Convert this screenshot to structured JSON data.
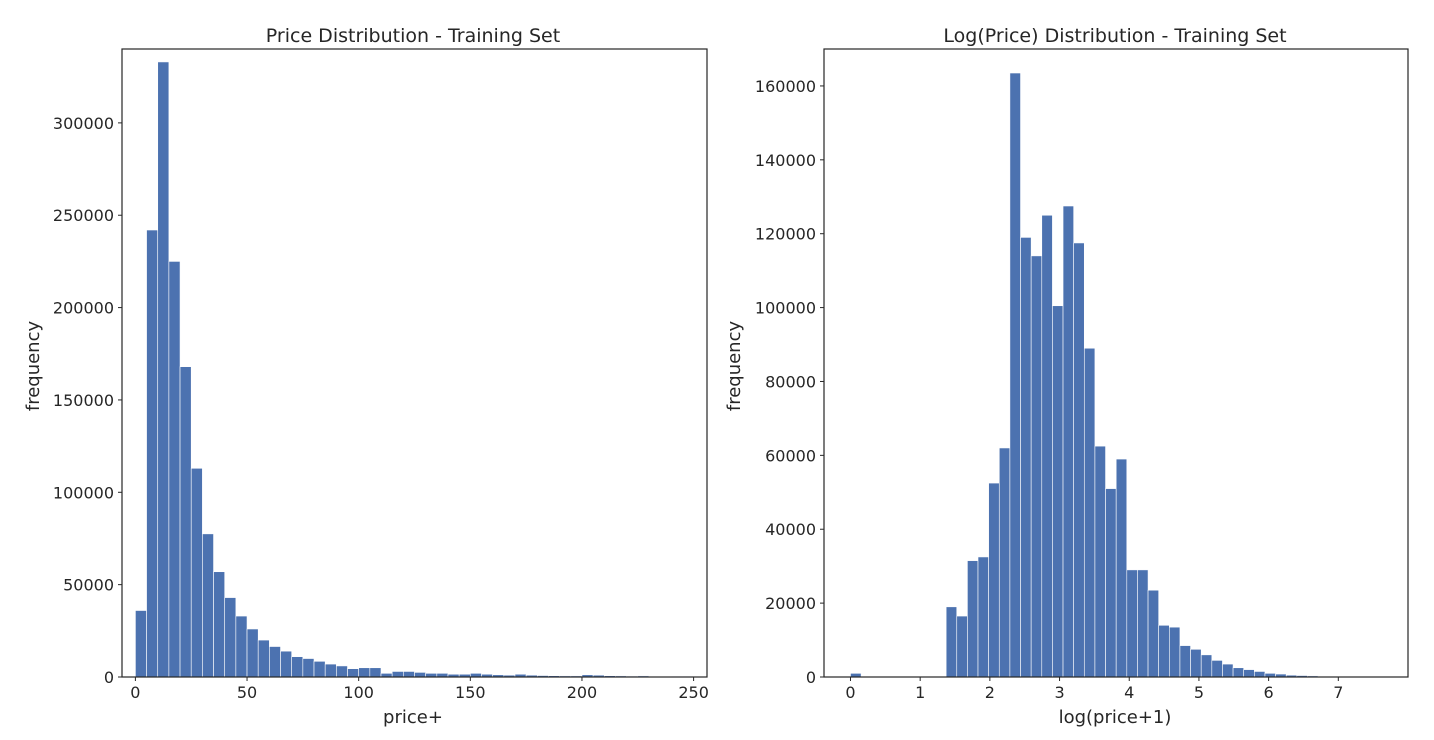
{
  "bar_color": "#4c72b0",
  "chart_data": [
    {
      "type": "bar",
      "title": "Price Distribution - Training Set",
      "xlabel": "price+",
      "ylabel": "frequency",
      "grid": false,
      "xlim": [
        -6,
        256
      ],
      "ylim": [
        0,
        340000
      ],
      "x_ticks": [
        0,
        50,
        100,
        150,
        200,
        250
      ],
      "y_ticks": [
        0,
        50000,
        100000,
        150000,
        200000,
        250000,
        300000
      ],
      "bin_start": 0,
      "bin_width": 5,
      "values": [
        36000,
        242000,
        333000,
        225000,
        168000,
        113000,
        77500,
        57000,
        43000,
        33000,
        26000,
        20000,
        16500,
        14000,
        11000,
        10000,
        8500,
        7000,
        6000,
        4500,
        5000,
        5000,
        2000,
        3000,
        3000,
        2500,
        2000,
        2000,
        1500,
        1500,
        2000,
        1500,
        1200,
        1000,
        1500,
        1000,
        800,
        700,
        600,
        600,
        1200,
        1000,
        700,
        600,
        500,
        600,
        400,
        400,
        300,
        300
      ]
    },
    {
      "type": "bar",
      "title": "Log(Price) Distribution - Training Set",
      "xlabel": "log(price+1)",
      "ylabel": "frequency",
      "grid": false,
      "xlim": [
        -0.38,
        8.0
      ],
      "ylim": [
        0,
        170000
      ],
      "x_ticks": [
        0,
        1,
        2,
        3,
        4,
        5,
        6,
        7
      ],
      "y_ticks": [
        0,
        20000,
        40000,
        60000,
        80000,
        100000,
        120000,
        140000,
        160000
      ],
      "bin_start": 0,
      "bin_width": 0.1525,
      "values": [
        1000,
        0,
        0,
        0,
        0,
        0,
        0,
        0,
        0,
        19000,
        16500,
        31500,
        32500,
        52500,
        62000,
        163500,
        119000,
        114000,
        125000,
        100500,
        127500,
        117500,
        89000,
        62500,
        51000,
        59000,
        29000,
        29000,
        23500,
        14000,
        13500,
        8500,
        7500,
        6000,
        4500,
        3500,
        2500,
        2000,
        1500,
        1000,
        800,
        500,
        400,
        300,
        200,
        100,
        100,
        50,
        30,
        20
      ]
    }
  ]
}
